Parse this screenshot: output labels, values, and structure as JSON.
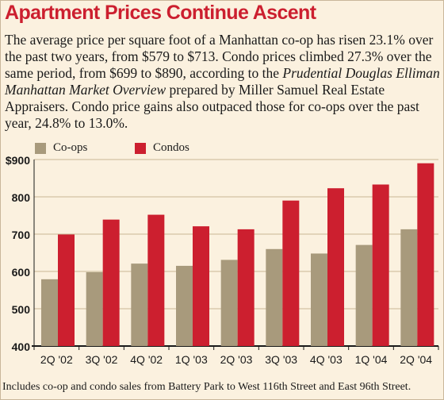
{
  "title": "Apartment Prices Continue Ascent",
  "intro": {
    "part1": "The average price per square foot of a Manhattan co-op has risen 23.1% over the past two years, from $579 to $713. Condo prices climbed 27.3% over the same period, from $699 to $890, according to the ",
    "italic": "Prudential Douglas Elliman Manhattan Market Overview",
    "part2": " prepared by Miller Samuel Real Estate Appraisers. Condo price gains also outpaced those for co-ops over the past year, 24.8% to 13.0%."
  },
  "footnote": "Includes co-op and condo sales from Battery Park to West 116th Street and East 96th Street.",
  "colors": {
    "coops": "#a89a7c",
    "condos": "#cc1f2f",
    "grid": "#c8b896",
    "text": "#1a1a1a"
  },
  "chart_data": {
    "type": "bar",
    "categories": [
      "2Q '02",
      "3Q '02",
      "4Q '02",
      "1Q '03",
      "2Q '03",
      "3Q '03",
      "4Q '03",
      "1Q '04",
      "2Q '04"
    ],
    "series": [
      {
        "name": "Co-ops",
        "values": [
          579,
          598,
          621,
          615,
          631,
          660,
          648,
          671,
          713
        ]
      },
      {
        "name": "Condos",
        "values": [
          699,
          739,
          752,
          721,
          713,
          790,
          823,
          833,
          890
        ]
      }
    ],
    "ylim": [
      400,
      900
    ],
    "yticks": [
      "$900",
      "800",
      "700",
      "600",
      "500",
      "400"
    ],
    "xlabel": "",
    "ylabel": "",
    "grid": true,
    "legend": "top-left"
  }
}
